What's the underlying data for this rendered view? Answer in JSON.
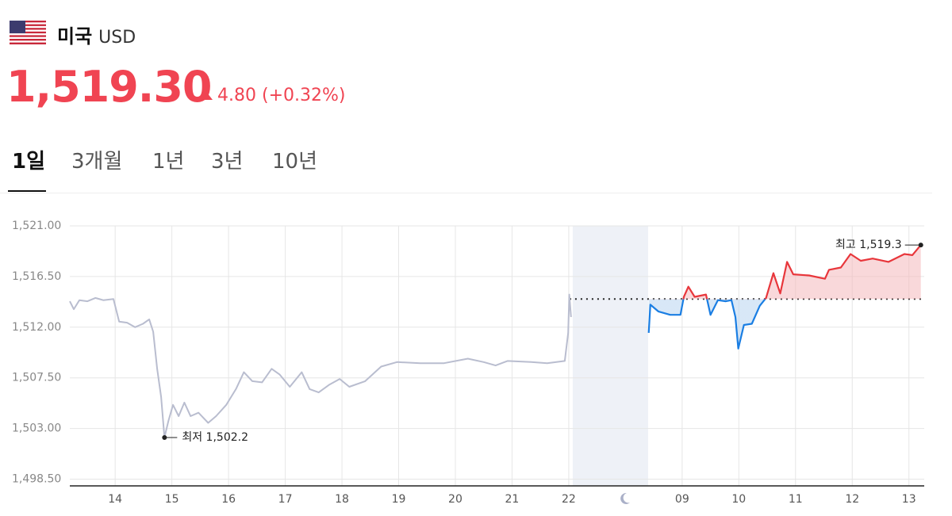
{
  "header": {
    "country": "미국",
    "currency": "USD",
    "price": "1,519.30",
    "change": "4.80",
    "change_pct": "(+0.32%)"
  },
  "tabs": {
    "items": [
      "1일",
      "3개월",
      "1년",
      "3년",
      "10년"
    ],
    "active": 0
  },
  "chart_data": {
    "type": "line",
    "xlim": [
      -0.8,
      14.27
    ],
    "ylim": [
      1497.9,
      1521
    ],
    "yticks": [
      {
        "value": 1521,
        "label": "1,521.00"
      },
      {
        "value": 1516.5,
        "label": "1,516.50"
      },
      {
        "value": 1512,
        "label": "1,512.00"
      },
      {
        "value": 1507.5,
        "label": "1,507.50"
      },
      {
        "value": 1503,
        "label": "1,503.00"
      },
      {
        "value": 1498.5,
        "label": "1,498.50"
      }
    ],
    "xticks": [
      {
        "value": 0,
        "label": "14"
      },
      {
        "value": 1,
        "label": "15"
      },
      {
        "value": 2,
        "label": "16"
      },
      {
        "value": 3,
        "label": "17"
      },
      {
        "value": 4,
        "label": "18"
      },
      {
        "value": 5,
        "label": "19"
      },
      {
        "value": 6,
        "label": "20"
      },
      {
        "value": 7,
        "label": "21"
      },
      {
        "value": 8,
        "label": "22"
      },
      {
        "value": 10,
        "label": "09"
      },
      {
        "value": 11,
        "label": "10"
      },
      {
        "value": 12,
        "label": "11"
      },
      {
        "value": 13,
        "label": "12"
      },
      {
        "value": 14,
        "label": "13"
      }
    ],
    "grid": true,
    "closed_period": [
      8.07,
      9.4
    ],
    "reference": 1514.5,
    "series": [
      {
        "color": "#b9bdcf",
        "x": [
          -0.8,
          -0.73,
          -0.63,
          -0.49,
          -0.35,
          -0.21,
          -0.03,
          0.07,
          0.21,
          0.35,
          0.49,
          0.6,
          0.67,
          0.74,
          0.81,
          0.87,
          0.94,
          1.02,
          1.12,
          1.22,
          1.33,
          1.47,
          1.64,
          1.78,
          1.96,
          2.13,
          2.27,
          2.42,
          2.59,
          2.76,
          2.9,
          3.08,
          3.29,
          3.43,
          3.59,
          3.78,
          3.96,
          4.13,
          4.41,
          4.69,
          4.97,
          5.38,
          5.8,
          6.22,
          6.5,
          6.71,
          6.92,
          7.34,
          7.62,
          7.93,
          7.99,
          8.01,
          8.04
        ],
        "values": [
          1514.3,
          1513.6,
          1514.4,
          1514.3,
          1514.6,
          1514.4,
          1514.5,
          1512.5,
          1512.4,
          1512.0,
          1512.3,
          1512.7,
          1511.6,
          1508.3,
          1505.8,
          1502.2,
          1503.7,
          1505.1,
          1504.1,
          1505.3,
          1504.1,
          1504.4,
          1503.5,
          1504.1,
          1505.1,
          1506.5,
          1508.0,
          1507.2,
          1507.1,
          1508.3,
          1507.8,
          1506.7,
          1508.0,
          1506.5,
          1506.2,
          1506.9,
          1507.4,
          1506.7,
          1507.2,
          1508.5,
          1508.9,
          1508.8,
          1508.8,
          1509.2,
          1508.9,
          1508.6,
          1509.0,
          1508.9,
          1508.8,
          1509.0,
          1511.5,
          1514.9,
          1512.9
        ]
      },
      {
        "color_up": "#e8363b",
        "color_down": "#1a7ee3",
        "x": [
          9.41,
          9.44,
          9.58,
          9.79,
          9.97,
          10.03,
          10.11,
          10.22,
          10.42,
          10.5,
          10.63,
          10.77,
          10.87,
          10.94,
          10.99,
          11.09,
          11.23,
          11.37,
          11.48,
          11.61,
          11.73,
          11.85,
          11.96,
          12.24,
          12.52,
          12.59,
          12.8,
          12.97,
          13.15,
          13.36,
          13.64,
          13.92,
          14.06,
          14.21
        ],
        "values": [
          1511.5,
          1514.0,
          1513.4,
          1513.1,
          1513.1,
          1514.7,
          1515.6,
          1514.7,
          1514.9,
          1513.1,
          1514.4,
          1514.3,
          1514.4,
          1512.9,
          1510.1,
          1512.2,
          1512.3,
          1513.9,
          1514.6,
          1516.8,
          1515.0,
          1517.8,
          1516.7,
          1516.6,
          1516.3,
          1517.1,
          1517.3,
          1518.5,
          1517.9,
          1518.1,
          1517.8,
          1518.5,
          1518.4,
          1519.3
        ]
      }
    ],
    "annotations": [
      {
        "text": "최저 1,502.2",
        "x": 0.87,
        "value": 1502.2
      },
      {
        "text": "최고 1,519.3",
        "x": 14.21,
        "value": 1519.3
      }
    ]
  }
}
